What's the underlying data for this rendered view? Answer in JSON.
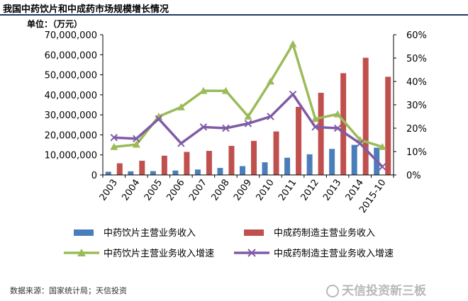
{
  "header": {
    "title": "我国中药饮片和中成药市场规模增长情况"
  },
  "source": "数据来源：国家统计局；天信投资",
  "watermark": "天信投资新三板",
  "chart_data": {
    "type": "bar",
    "title": "我国中药饮片和中成药市场规模增长情况",
    "ylabel": "单位：（万元）",
    "ylim": [
      0,
      70000000
    ],
    "y2lim": [
      0,
      0.6
    ],
    "yticks": [
      "0",
      "10,000,000",
      "20,000,000",
      "30,000,000",
      "40,000,000",
      "50,000,000",
      "60,000,000",
      "70,000,000"
    ],
    "y2ticks": [
      "0%",
      "10%",
      "20%",
      "30%",
      "40%",
      "50%",
      "60%"
    ],
    "categories": [
      "2003",
      "2004",
      "2005",
      "2006",
      "2007",
      "2008",
      "2009",
      "2010",
      "2011",
      "2012",
      "2013",
      "2014",
      "2015-10"
    ],
    "series": [
      {
        "name": "中药饮片主营业务收入",
        "type": "bar",
        "axis": "left",
        "color": "#4a7ebb",
        "values": [
          1600000,
          1800000,
          1900000,
          2200000,
          2700000,
          3500000,
          4400000,
          6300000,
          8600000,
          10300000,
          13000000,
          15000000,
          13600000
        ]
      },
      {
        "name": "中成药制造主营业务收入",
        "type": "bar",
        "axis": "left",
        "color": "#c0504d",
        "values": [
          5800000,
          7100000,
          9600000,
          11500000,
          12000000,
          14500000,
          17000000,
          21700000,
          34000000,
          41000000,
          50800000,
          58500000,
          49000000
        ]
      },
      {
        "name": "中药饮片主营业务收入增速",
        "type": "line",
        "axis": "right",
        "color": "#9bbb59",
        "values": [
          0.12,
          0.13,
          0.25,
          0.29,
          0.36,
          0.36,
          0.25,
          0.4,
          0.56,
          0.24,
          0.26,
          0.15,
          0.12
        ]
      },
      {
        "name": "中成药制造主营业务收入增速",
        "type": "line",
        "axis": "right",
        "color": "#7f5ba6",
        "values": [
          0.16,
          0.155,
          0.24,
          0.135,
          0.205,
          0.2,
          0.22,
          0.25,
          0.345,
          0.205,
          0.2,
          0.135,
          0.035
        ]
      }
    ],
    "legend": "bottom"
  }
}
